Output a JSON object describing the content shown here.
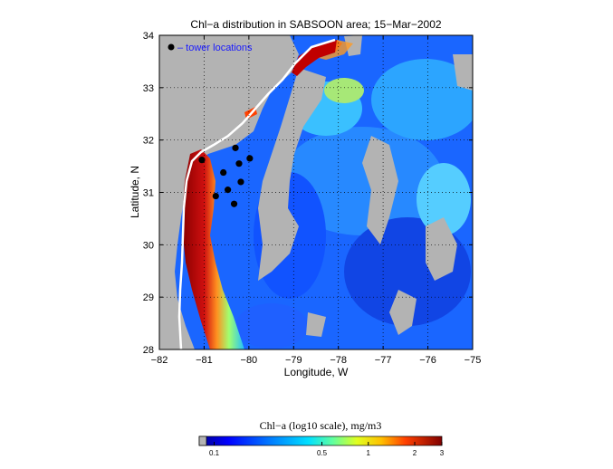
{
  "map": {
    "title": "Chl−a distribution in SABSOON area; 15−Mar−2002",
    "xlabel": "Longitude, W",
    "ylabel": "Latitude, N",
    "xlim": [
      -82,
      -75
    ],
    "ylim": [
      28,
      34
    ],
    "xticks": [
      "−82",
      "−81",
      "−80",
      "−79",
      "−78",
      "−77",
      "−76",
      "−75"
    ],
    "yticks": [
      "28",
      "29",
      "30",
      "31",
      "32",
      "33",
      "34"
    ],
    "grid": true,
    "legend_label": "– tower locations",
    "land_color": "#b3b3b3",
    "towers": [
      {
        "lon": -81.05,
        "lat": 31.62
      },
      {
        "lon": -80.3,
        "lat": 31.85
      },
      {
        "lon": -79.98,
        "lat": 31.65
      },
      {
        "lon": -80.22,
        "lat": 31.55
      },
      {
        "lon": -80.57,
        "lat": 31.38
      },
      {
        "lon": -80.18,
        "lat": 31.2
      },
      {
        "lon": -80.47,
        "lat": 31.05
      },
      {
        "lon": -80.74,
        "lat": 30.93
      },
      {
        "lon": -80.33,
        "lat": 30.78
      }
    ]
  },
  "colorbar": {
    "title": "Chl−a (log10 scale), mg/m3",
    "ticks": [
      "0.1",
      "0.5",
      "1",
      "2",
      "3"
    ],
    "colors": [
      "#00008f",
      "#0000ff",
      "#0060ff",
      "#00c0ff",
      "#40ffbf",
      "#a0ff60",
      "#ffff00",
      "#ff9000",
      "#ff2000",
      "#b00000",
      "#800000"
    ]
  }
}
